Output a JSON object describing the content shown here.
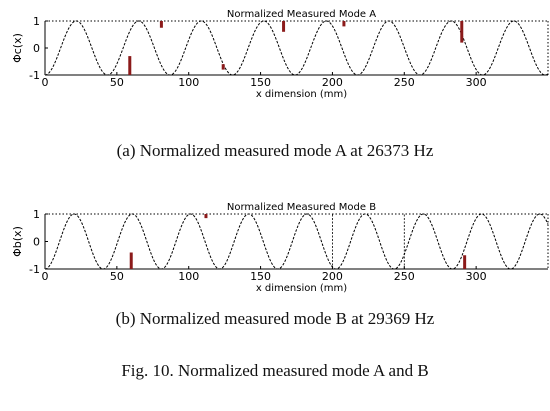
{
  "panels": [
    {
      "title": "Normalized Measured Mode A",
      "ylabel": "Φc(x)",
      "xlabel": "x dimension (mm)",
      "caption": "(a) Normalized measured mode A at 26373 Hz"
    },
    {
      "title": "Normalized Measured Mode B",
      "ylabel": "Φb(x)",
      "xlabel": "x dimension (mm)",
      "caption": "(b) Normalized measured mode B at 29369 Hz"
    }
  ],
  "figure_caption": "Fig. 10.   Normalized measured mode A and B",
  "chart_data": [
    {
      "type": "line",
      "title": "Normalized Measured Mode A",
      "xlabel": "x dimension (mm)",
      "ylabel": "Φc(x)",
      "xlim": [
        0,
        350
      ],
      "ylim": [
        -1,
        1
      ],
      "xticks": [
        0,
        50,
        100,
        150,
        200,
        250,
        300
      ],
      "yticks": [
        -1,
        0,
        1
      ],
      "grid": false,
      "series": [
        {
          "style": "dashed sinusoid",
          "color": "#000000",
          "x0": 0,
          "period": 43.5,
          "phase_deg": 180,
          "x": [
            0,
            21.75,
            43.5,
            65.25,
            87,
            108.75,
            130.5,
            152.25,
            174,
            195.75,
            217.5,
            239.25,
            261,
            282.75,
            304.5,
            326.25,
            348
          ],
          "y": [
            -1,
            1,
            -1,
            1,
            -1,
            1,
            -1,
            1,
            -1,
            1,
            -1,
            1,
            -1,
            1,
            -1,
            1,
            -1
          ]
        }
      ],
      "highlights": [
        {
          "x": 59,
          "y_from": -1,
          "y_to": -0.3,
          "color": "#8b1a1a"
        },
        {
          "x": 81,
          "y_from": 0.75,
          "y_to": 1,
          "color": "#8b1a1a"
        },
        {
          "x": 124,
          "y_from": -0.8,
          "y_to": -0.6,
          "color": "#8b1a1a"
        },
        {
          "x": 166,
          "y_from": 0.6,
          "y_to": 1,
          "color": "#8b1a1a"
        },
        {
          "x": 208,
          "y_from": 0.8,
          "y_to": 1,
          "color": "#8b1a1a"
        },
        {
          "x": 290,
          "y_from": 0.2,
          "y_to": 1,
          "color": "#8b1a1a"
        }
      ]
    },
    {
      "type": "line",
      "title": "Normalized Measured Mode B",
      "xlabel": "x dimension (mm)",
      "ylabel": "Φb(x)",
      "xlim": [
        0,
        350
      ],
      "ylim": [
        -1,
        1
      ],
      "xticks": [
        0,
        50,
        100,
        150,
        200,
        250,
        300
      ],
      "yticks": [
        -1,
        0,
        1
      ],
      "grid": false,
      "series": [
        {
          "style": "dashed sinusoid",
          "color": "#000000",
          "x0": 0,
          "period": 40.5,
          "phase_deg": 180,
          "x": [
            0,
            20.25,
            40.5,
            60.75,
            81,
            101.25,
            121.5,
            141.75,
            162,
            182.25,
            202.5,
            222.75,
            243,
            263.25,
            283.5,
            303.75,
            324,
            344.25
          ],
          "y": [
            -1,
            1,
            -1,
            1,
            -1,
            1,
            -1,
            1,
            -1,
            1,
            -1,
            1,
            -1,
            1,
            -1,
            1,
            -1,
            1
          ]
        }
      ],
      "highlights": [
        {
          "x": 60,
          "y_from": -1,
          "y_to": -0.4,
          "color": "#8b1a1a"
        },
        {
          "x": 112,
          "y_from": 0.85,
          "y_to": 1,
          "color": "#8b1a1a"
        },
        {
          "x": 200,
          "y_from": -1,
          "y_to": 1,
          "color": "#000000"
        },
        {
          "x": 250,
          "y_from": -1,
          "y_to": 1,
          "color": "#000000"
        },
        {
          "x": 292,
          "y_from": -1,
          "y_to": -0.5,
          "color": "#8b1a1a"
        }
      ]
    }
  ]
}
